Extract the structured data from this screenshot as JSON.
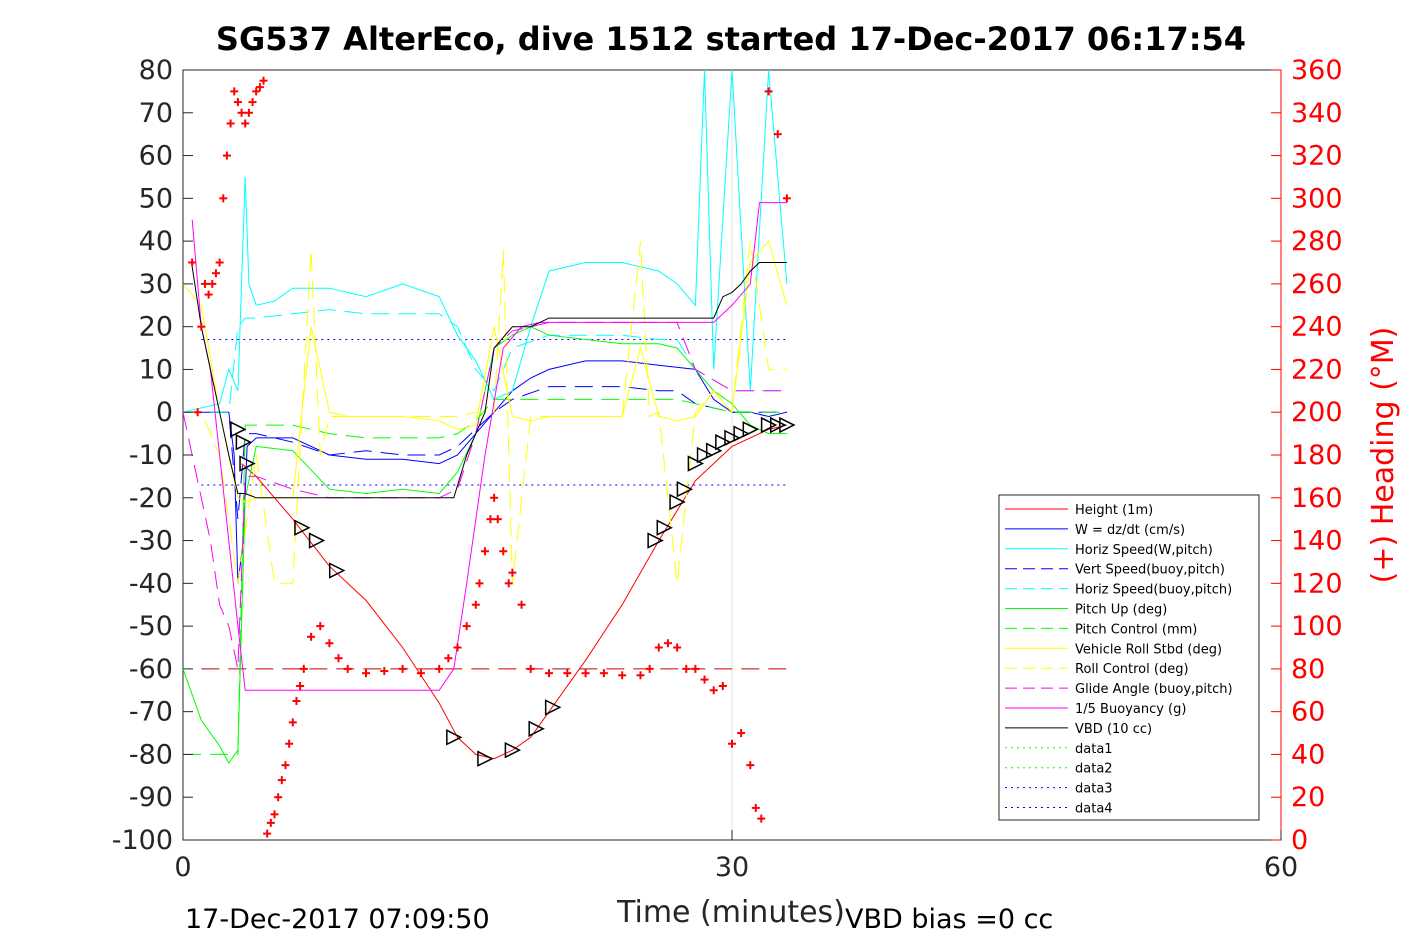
{
  "chart_data": {
    "type": "line",
    "title": "SG537 AlterEco, dive 1512 started 17-Dec-2017 06:17:54",
    "xlabel": "Time (minutes)",
    "ylabel_left": "",
    "ylabel_right": "(+) Heading (°M)",
    "xlim": [
      0,
      60
    ],
    "ylim_left": [
      -100,
      80
    ],
    "ylim_right": [
      0,
      360
    ],
    "x_ticks": [
      "0",
      "30",
      "60"
    ],
    "y_ticks_left": [
      "80",
      "70",
      "60",
      "50",
      "40",
      "30",
      "20",
      "10",
      "0",
      "-10",
      "-20",
      "-30",
      "-40",
      "-50",
      "-60",
      "-70",
      "-80",
      "-90",
      "-100"
    ],
    "y_ticks_right": [
      "360",
      "340",
      "320",
      "300",
      "280",
      "260",
      "240",
      "220",
      "200",
      "180",
      "160",
      "140",
      "120",
      "100",
      "80",
      "60",
      "40",
      "20",
      "0"
    ],
    "grid": "vertical line at x=30",
    "legend_position": "lower-right",
    "footer_left": "17-Dec-2017 07:09:50",
    "footer_right": "VBD bias =0 cc",
    "series": [
      {
        "name": "Height (1m)",
        "color": "#ff0000",
        "style": "solid",
        "x": [
          3.2,
          4,
          6,
          8,
          10,
          12,
          14,
          15,
          16,
          17,
          18,
          19,
          20,
          22,
          24,
          26,
          28,
          30,
          32,
          33
        ],
        "y": [
          -12,
          -15,
          -25,
          -36,
          -44,
          -55,
          -68,
          -76,
          -80,
          -81,
          -79,
          -76,
          -70,
          -58,
          -45,
          -30,
          -16,
          -8,
          -4,
          -3
        ]
      },
      {
        "name": "W = dz/dt (cm/s)",
        "color": "#0000ff",
        "style": "solid",
        "x": [
          0,
          2.5,
          2.8,
          3,
          3.3,
          3.5,
          4,
          6,
          8,
          10,
          12,
          14,
          15,
          16,
          17,
          18,
          19,
          20,
          22,
          24,
          26,
          28,
          29,
          30,
          31,
          32,
          33
        ],
        "y": [
          0,
          0,
          -10,
          -40,
          -30,
          -8,
          -6,
          -6,
          -10,
          -11,
          -11,
          -12,
          -10,
          -5,
          0,
          5,
          8,
          10,
          12,
          12,
          11,
          10,
          3,
          0,
          0,
          -1,
          0
        ]
      },
      {
        "name": "Horiz Speed(W,pitch)",
        "color": "#00ffff",
        "style": "solid",
        "x": [
          0,
          2,
          2.5,
          3,
          3.4,
          3.6,
          4,
          5,
          6,
          8,
          10,
          12,
          14,
          15,
          16,
          17,
          18,
          19,
          20,
          22,
          24,
          26,
          27,
          28,
          28.5,
          29,
          30,
          31,
          32,
          33
        ],
        "y": [
          0,
          2,
          10,
          5,
          55,
          30,
          25,
          26,
          29,
          29,
          27,
          30,
          27,
          18,
          12,
          3,
          5,
          20,
          33,
          35,
          35,
          33,
          30,
          25,
          80,
          10,
          80,
          5,
          80,
          30
        ]
      },
      {
        "name": "Vert Speed(buoy,pitch)",
        "color": "#0000ff",
        "style": "dashed",
        "x": [
          0,
          2.5,
          3,
          3.4,
          4,
          6,
          8,
          10,
          12,
          14,
          15,
          16,
          17,
          18,
          20,
          22,
          24,
          26,
          27,
          28,
          30,
          32,
          33
        ],
        "y": [
          0,
          0,
          -25,
          -5,
          -5,
          -7,
          -10,
          -9,
          -10,
          -10,
          -8,
          -4,
          0,
          3,
          6,
          6,
          6,
          5,
          5,
          2,
          0,
          0,
          0
        ]
      },
      {
        "name": "Horiz Speed(buoy,pitch)",
        "color": "#00ffff",
        "style": "dashed",
        "x": [
          0,
          2.5,
          3,
          3.4,
          4,
          6,
          8,
          10,
          12,
          14,
          15,
          16,
          17,
          18,
          20,
          22,
          24,
          26,
          27,
          28,
          30,
          32,
          33
        ],
        "y": [
          0,
          0,
          20,
          22,
          22,
          23,
          24,
          23,
          23,
          23,
          20,
          10,
          5,
          15,
          18,
          18,
          18,
          17,
          17,
          10,
          5,
          5,
          5
        ]
      },
      {
        "name": "Pitch Up (deg)",
        "color": "#00ff00",
        "style": "solid",
        "x": [
          0,
          1,
          1.5,
          2,
          2.5,
          3,
          3.4,
          4,
          6,
          8,
          10,
          12,
          14,
          15,
          16,
          17,
          18,
          19,
          20,
          22,
          24,
          26,
          27,
          28,
          29,
          30,
          31,
          32,
          33
        ],
        "y": [
          -60,
          -72,
          -75,
          -78,
          -82,
          -79,
          -20,
          -8,
          -9,
          -18,
          -19,
          -18,
          -19,
          -14,
          -5,
          15,
          18,
          20,
          18,
          17,
          16,
          16,
          15,
          10,
          5,
          2,
          -3,
          -5,
          -5
        ]
      },
      {
        "name": "Pitch Control (mm)",
        "color": "#00ff00",
        "style": "dashed",
        "x": [
          0,
          1,
          2,
          3,
          3.4,
          4,
          6,
          8,
          10,
          12,
          14,
          15,
          16,
          17,
          18,
          20,
          22,
          24,
          26,
          27,
          28,
          30,
          32,
          33
        ],
        "y": [
          -80,
          -80,
          -80,
          -80,
          -3,
          -3,
          -3,
          -5,
          -6,
          -6,
          -6,
          -5,
          -2,
          3,
          3,
          3,
          3,
          3,
          3,
          3,
          2,
          0,
          0,
          0
        ]
      },
      {
        "name": "Vehicle Roll Stbd (deg)",
        "color": "#ffff00",
        "style": "solid",
        "x": [
          0,
          1,
          2,
          3,
          3.4,
          4,
          6,
          6.5,
          7,
          8,
          9,
          10,
          12,
          14,
          15,
          16,
          17,
          18,
          19,
          20,
          22,
          24,
          25,
          26,
          27,
          28,
          29,
          30,
          31,
          32,
          33
        ],
        "y": [
          30,
          25,
          0,
          -20,
          -21,
          -20,
          -20,
          0,
          20,
          0,
          -1,
          -1,
          -1,
          -2,
          -4,
          -3,
          20,
          -1,
          -2,
          -1,
          -1,
          -1,
          15,
          -1,
          -2,
          -1,
          5,
          0,
          35,
          40,
          25
        ]
      },
      {
        "name": "Roll Control (deg)",
        "color": "#ffff00",
        "style": "dashed",
        "x": [
          0,
          1,
          2,
          3,
          4,
          5,
          6,
          7,
          7.5,
          8,
          9,
          12,
          14,
          15,
          16,
          17,
          17.5,
          18,
          19,
          20,
          22,
          24,
          25,
          25.5,
          26,
          27,
          28,
          29,
          30,
          31,
          32,
          33
        ],
        "y": [
          0,
          0,
          -10,
          -40,
          -10,
          -40,
          -40,
          38,
          -10,
          -1,
          -1,
          -1,
          -1,
          -1,
          0,
          0,
          38,
          -40,
          -1,
          -1,
          -1,
          -1,
          40,
          -1,
          0,
          -40,
          0,
          5,
          0,
          40,
          10,
          10
        ]
      },
      {
        "name": "Glide Angle (buoy,pitch)",
        "color": "#ff00ff",
        "style": "dashed",
        "x": [
          0,
          1,
          1.5,
          2,
          2.5,
          3,
          3.4,
          4,
          6,
          8,
          10,
          12,
          14,
          15,
          16,
          17,
          18,
          19,
          20,
          22,
          24,
          26,
          27,
          28,
          30,
          32,
          33
        ],
        "y": [
          0,
          -20,
          -30,
          -45,
          -50,
          -60,
          -15,
          -15,
          -18,
          -20,
          -20,
          -20,
          -20,
          -18,
          -5,
          15,
          19,
          20,
          21,
          21,
          21,
          21,
          21,
          10,
          5,
          5,
          5
        ]
      },
      {
        "name": "1/5 Buoyancy (g)",
        "color": "#ff00ff",
        "style": "solid",
        "x": [
          0.5,
          1,
          1.5,
          2,
          2.5,
          3,
          3.4,
          4,
          6,
          8,
          10,
          12,
          14,
          14.8,
          15.5,
          16.5,
          17.5,
          18.5,
          19.5,
          20,
          22,
          24,
          26,
          28,
          29,
          30,
          31,
          31.5,
          32,
          33
        ],
        "y": [
          45,
          20,
          10,
          -10,
          -30,
          -50,
          -65,
          -65,
          -65,
          -65,
          -65,
          -65,
          -65,
          -60,
          -40,
          -10,
          15,
          20,
          21,
          21,
          21,
          21,
          21,
          21,
          21,
          25,
          30,
          49,
          49,
          49
        ]
      },
      {
        "name": "VBD (10 cc)",
        "color": "#000000",
        "style": "solid",
        "x": [
          0.5,
          1,
          1.5,
          2,
          2.5,
          3,
          3.4,
          4,
          6,
          8,
          10,
          12,
          14,
          14.8,
          15.5,
          16.5,
          17,
          18,
          19,
          20,
          22,
          24,
          26,
          28,
          29,
          29.5,
          30,
          30.5,
          31,
          31.5,
          32,
          33
        ],
        "y": [
          34,
          20,
          10,
          0,
          -10,
          -19,
          -19,
          -20,
          -20,
          -20,
          -20,
          -20,
          -20,
          -20,
          -10,
          0,
          15,
          20,
          20,
          22,
          22,
          22,
          22,
          22,
          22,
          27,
          28,
          30,
          33,
          35,
          35,
          35
        ]
      },
      {
        "name": "data1",
        "color": "#00ff00",
        "style": "dotted",
        "x": [],
        "y": []
      },
      {
        "name": "data2",
        "color": "#00ff00",
        "style": "dotted",
        "x": [],
        "y": []
      },
      {
        "name": "data3",
        "color": "#0000ff",
        "style": "dotted",
        "x": [],
        "y": []
      },
      {
        "name": "data4",
        "color": "#0000ff",
        "style": "dotted",
        "x": [],
        "y": []
      }
    ],
    "reference_lines": [
      {
        "color": "#0000ff",
        "style": "dotted",
        "y": 17,
        "x": [
          1,
          33
        ]
      },
      {
        "color": "#0000ff",
        "style": "dotted",
        "y": -17,
        "x": [
          1,
          33
        ]
      },
      {
        "color": "#cc0000",
        "style": "dashed",
        "y": -60,
        "x": [
          1,
          33
        ]
      }
    ],
    "heading_points": {
      "name": "Heading (°M)",
      "color": "#ff0000",
      "marker": "+",
      "axis": "right",
      "x": [
        0.5,
        0.8,
        1,
        1.2,
        1.4,
        1.6,
        1.8,
        2,
        2.2,
        2.4,
        2.6,
        2.8,
        3,
        3.2,
        3.4,
        3.6,
        3.8,
        4,
        4.2,
        4.4,
        4.6,
        4.8,
        5,
        5.2,
        5.4,
        5.6,
        5.8,
        6,
        6.2,
        6.4,
        6.6,
        7,
        7.5,
        8,
        8.5,
        9,
        10,
        11,
        12,
        13,
        14,
        14.5,
        15,
        15.5,
        16,
        16.2,
        16.5,
        16.8,
        17,
        17.2,
        17.5,
        17.8,
        18,
        18.5,
        19,
        20,
        21,
        22,
        23,
        24,
        25,
        25.5,
        26,
        26.5,
        27,
        27.5,
        28,
        28.5,
        29,
        29.5,
        30,
        30.5,
        31,
        31.3,
        31.6,
        32,
        32.5,
        33
      ],
      "y": [
        270,
        200,
        240,
        260,
        255,
        260,
        265,
        270,
        300,
        320,
        335,
        350,
        345,
        340,
        335,
        340,
        345,
        350,
        352,
        355,
        3,
        8,
        12,
        20,
        28,
        35,
        45,
        55,
        65,
        72,
        80,
        95,
        100,
        92,
        85,
        80,
        78,
        79,
        80,
        78,
        80,
        85,
        90,
        100,
        110,
        120,
        135,
        150,
        160,
        150,
        135,
        120,
        125,
        110,
        80,
        78,
        78,
        78,
        78,
        77,
        77,
        80,
        90,
        92,
        90,
        80,
        80,
        75,
        70,
        72,
        45,
        50,
        35,
        15,
        10,
        350,
        330,
        300
      ]
    },
    "markers": {
      "name": "triangle markers on Height",
      "color": "#000000",
      "x": [
        3,
        3.3,
        3.5,
        6.5,
        7.3,
        8.4,
        14.8,
        16.5,
        18,
        19.3,
        20.2,
        25.8,
        26.3,
        27,
        27.4,
        28,
        28.5,
        29,
        29.5,
        30,
        30.5,
        31,
        32,
        32.5,
        33
      ],
      "y": [
        -4,
        -7,
        -12,
        -27,
        -30,
        -37,
        -76,
        -81,
        -79,
        -74,
        -69,
        -30,
        -27,
        -21,
        -18,
        -12,
        -10,
        -9,
        -7,
        -6,
        -5,
        -4,
        -3,
        -3,
        -3
      ]
    }
  }
}
